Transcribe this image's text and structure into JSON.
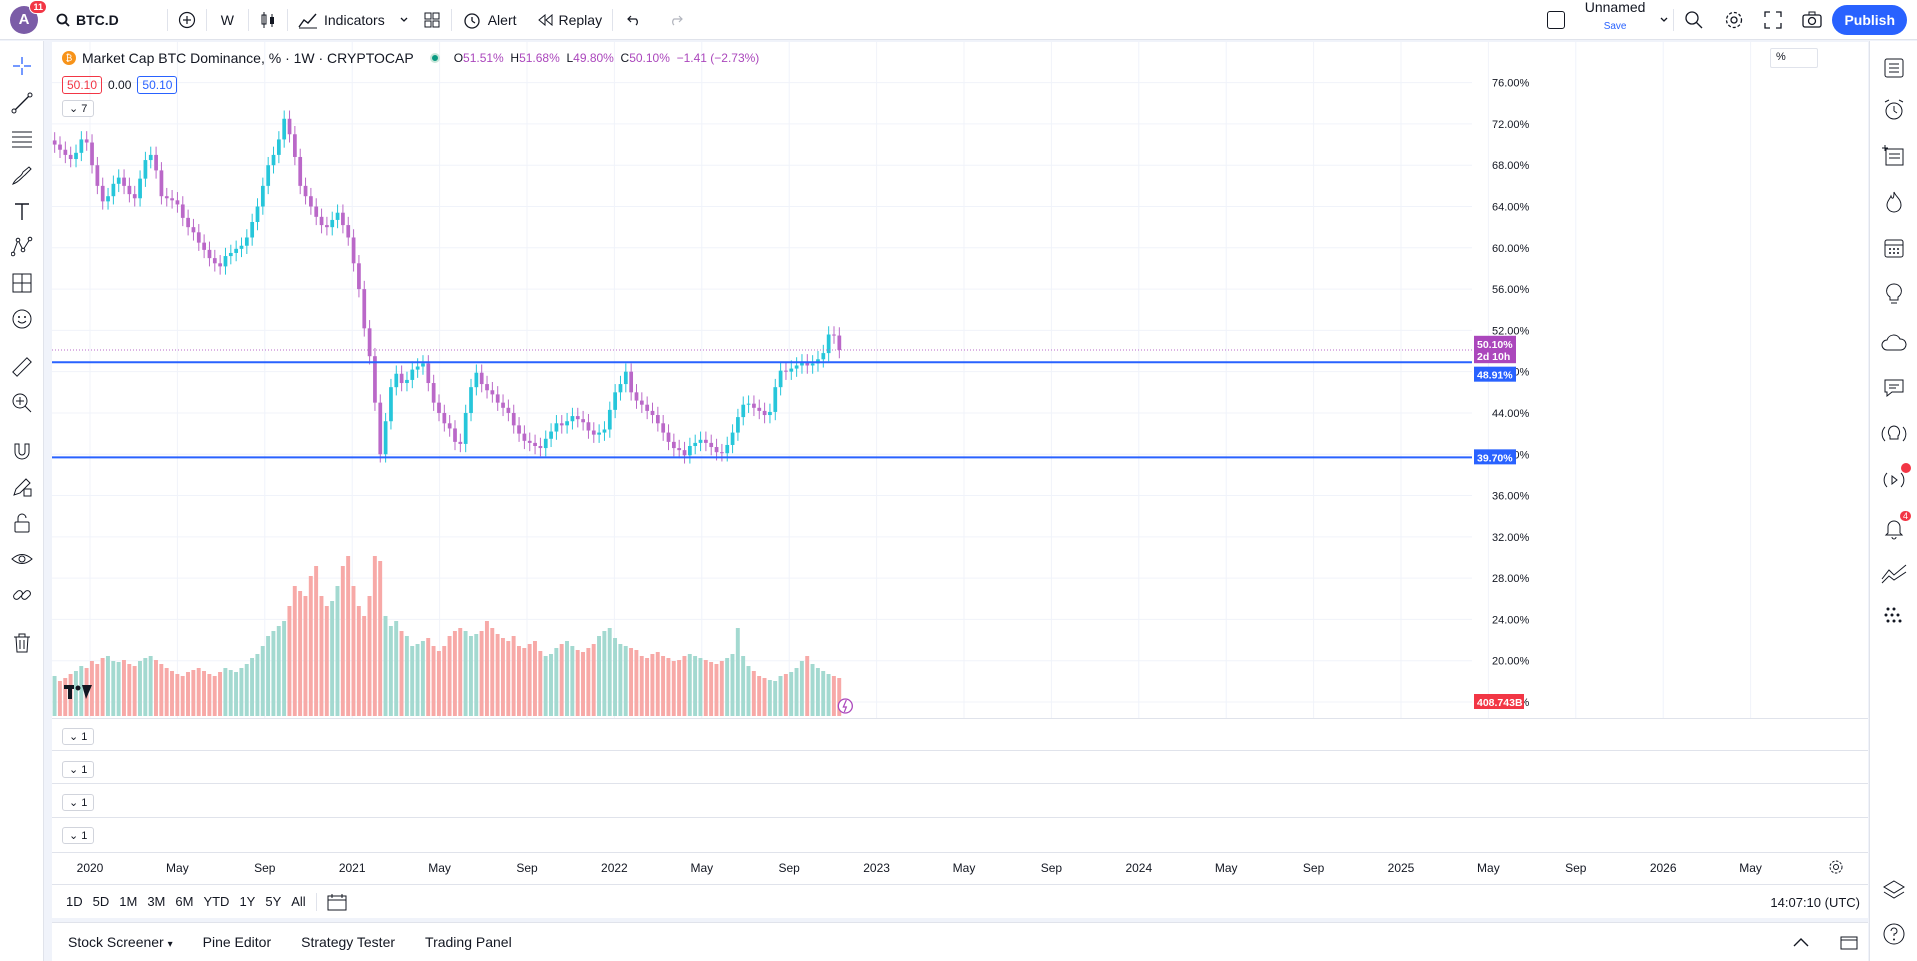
{
  "topbar": {
    "avatar_letter": "A",
    "avatar_badge": "11",
    "symbol": "BTC.D",
    "interval": "W",
    "indicators_label": "Indicators",
    "alert_label": "Alert",
    "replay_label": "Replay",
    "layout_name": "Unnamed",
    "save_label": "Save",
    "publish_label": "Publish"
  },
  "legend": {
    "title": "Market Cap BTC Dominance, % · 1W · CRYPTOCAP",
    "coin_glyph": "₿",
    "o_key": "O",
    "o_val": "51.51%",
    "h_key": "H",
    "h_val": "51.68%",
    "l_key": "L",
    "l_val": "49.80%",
    "c_key": "C",
    "c_val": "50.10%",
    "change": "−1.41 (−2.73%)",
    "bid": "50.10",
    "spread": "0.00",
    "ask": "50.10",
    "indicator_count": "7",
    "scale_mode": "%"
  },
  "panes": [
    {
      "count": "1"
    },
    {
      "count": "1"
    },
    {
      "count": "1"
    },
    {
      "count": "1"
    }
  ],
  "price_axis": {
    "ticks": [
      "76.00%",
      "72.00%",
      "68.00%",
      "64.00%",
      "60.00%",
      "56.00%",
      "52.00%",
      "48.00%",
      "44.00%",
      "40.00%",
      "36.00%",
      "32.00%",
      "28.00%",
      "24.00%",
      "20.00%",
      "16.00%"
    ],
    "last_price_tag": "50.10%",
    "countdown_tag": "2d 10h",
    "line1_tag": "48.91%",
    "line2_tag": "39.70%",
    "volume_tag": "408.743B"
  },
  "time_axis": {
    "labels": [
      "2020",
      "May",
      "Sep",
      "2021",
      "May",
      "Sep",
      "2022",
      "May",
      "Sep",
      "2023",
      "May",
      "Sep",
      "2024",
      "May",
      "Sep",
      "2025",
      "May",
      "Sep",
      "2026",
      "May"
    ]
  },
  "ranges": [
    "1D",
    "5D",
    "1M",
    "3M",
    "6M",
    "YTD",
    "1Y",
    "5Y",
    "All"
  ],
  "clock": "14:07:10 (UTC)",
  "bottom_tabs": {
    "screener": "Stock Screener",
    "pine": "Pine Editor",
    "tester": "Strategy Tester",
    "trading": "Trading Panel"
  },
  "right_badges": {
    "alerts": "4"
  },
  "chart_data": {
    "type": "candlestick",
    "ylim": [
      16,
      78
    ],
    "horizontal_lines": [
      48.91,
      39.7
    ],
    "last_close": 50.1,
    "series": [
      {
        "name": "BTC.D",
        "values": [
          70,
          69.5,
          69,
          68.6,
          69.2,
          70.5,
          70.2,
          68,
          66,
          64.5,
          65,
          66.2,
          66.8,
          66,
          65.2,
          64.8,
          66.7,
          68.5,
          69,
          67.5,
          65,
          64.8,
          64.6,
          64.2,
          62.9,
          62,
          61.5,
          60.5,
          59.8,
          59,
          58.5,
          58.2,
          59.2,
          59.5,
          59.9,
          60.2,
          61,
          62.5,
          64,
          66,
          68,
          69,
          70.5,
          72.5,
          71,
          68.8,
          66,
          65,
          64,
          63,
          62.2,
          62,
          62.7,
          63.4,
          62.2,
          61,
          58.5,
          56,
          52.2,
          49.5,
          45,
          40,
          43.2,
          46.5,
          47.8,
          46.9,
          47.2,
          48.2,
          48.5,
          48.8,
          46.9,
          45,
          44,
          43,
          42.5,
          41.2,
          41,
          44,
          46.5,
          47.9,
          46.8,
          46.2,
          45.8,
          45,
          44.5,
          44,
          42.8,
          42,
          41.3,
          41.1,
          40.8,
          40.6,
          41.5,
          42.2,
          43,
          42.8,
          43.2,
          43.7,
          43.4,
          43.1,
          42.3,
          41.9,
          42.1,
          42.4,
          44.3,
          46,
          46.8,
          48,
          46,
          45.2,
          44.8,
          44.2,
          43.8,
          43,
          42.1,
          41.2,
          40.6,
          40.4,
          39.9,
          40.8,
          41.1,
          41.4,
          41.1,
          40.7,
          40.2,
          40.1,
          40.9,
          42.1,
          43.6,
          44.8,
          44.9,
          44.5,
          44.2,
          43.8,
          44.1,
          46.5,
          48.1,
          48,
          48.3,
          48.6,
          48.9,
          48.6,
          48.8,
          49.2,
          49.8,
          51.6,
          51.5,
          50.1
        ]
      }
    ],
    "volume": [
      40,
      35,
      38,
      42,
      45,
      50,
      48,
      55,
      52,
      58,
      60,
      55,
      54,
      56,
      52,
      50,
      55,
      58,
      60,
      56,
      52,
      48,
      45,
      42,
      40,
      44,
      46,
      48,
      45,
      42,
      40,
      44,
      48,
      46,
      44,
      48,
      52,
      58,
      62,
      70,
      80,
      85,
      90,
      95,
      110,
      130,
      125,
      120,
      140,
      150,
      120,
      110,
      115,
      130,
      150,
      160,
      130,
      110,
      100,
      120,
      160,
      155,
      100,
      90,
      95,
      85,
      80,
      70,
      72,
      75,
      78,
      70,
      65,
      70,
      80,
      85,
      88,
      85,
      80,
      82,
      85,
      95,
      88,
      82,
      78,
      75,
      80,
      70,
      68,
      72,
      75,
      65,
      60,
      62,
      68,
      72,
      75,
      70,
      66,
      64,
      68,
      72,
      80,
      85,
      88,
      78,
      72,
      70,
      68,
      66,
      60,
      58,
      62,
      64,
      60,
      58,
      55,
      56,
      60,
      62,
      60,
      58,
      56,
      54,
      52,
      55,
      58,
      62,
      88,
      60,
      50,
      45,
      40,
      38,
      36,
      35,
      40,
      42,
      44,
      48,
      55,
      60,
      52,
      48,
      45,
      42,
      40,
      38,
      35,
      32,
      30,
      28,
      30,
      32
    ]
  }
}
